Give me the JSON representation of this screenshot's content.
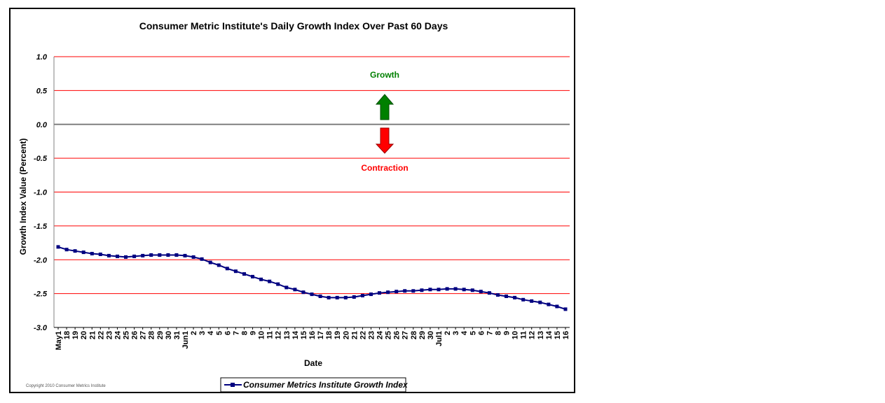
{
  "chart_data": {
    "type": "line",
    "title": "Consumer Metric Institute's Daily Growth Index Over Past 60 Days",
    "xlabel": "Date",
    "ylabel": "Growth Index Value (Percent)",
    "ylim": [
      -3.0,
      1.0
    ],
    "yticks": [
      "1.0",
      "0.5",
      "0.0",
      "-0.5",
      "-1.0",
      "-1.5",
      "-2.0",
      "-2.5",
      "-3.0"
    ],
    "grid": true,
    "legend_position": "bottom-center",
    "x": [
      "May1",
      "18",
      "19",
      "20",
      "21",
      "22",
      "23",
      "24",
      "25",
      "26",
      "27",
      "28",
      "29",
      "30",
      "31",
      "Jun1",
      "2",
      "3",
      "4",
      "5",
      "6",
      "7",
      "8",
      "9",
      "10",
      "11",
      "12",
      "13",
      "14",
      "15",
      "16",
      "17",
      "18",
      "19",
      "20",
      "21",
      "22",
      "23",
      "24",
      "25",
      "26",
      "27",
      "28",
      "29",
      "30",
      "Jul1",
      "2",
      "3",
      "4",
      "5",
      "6",
      "7",
      "8",
      "9",
      "10",
      "11",
      "12",
      "13",
      "14",
      "15",
      "16"
    ],
    "series": [
      {
        "name": "Consumer Metrics Institute Growth Index",
        "color": "#000080",
        "values": [
          -1.81,
          -1.85,
          -1.87,
          -1.89,
          -1.91,
          -1.92,
          -1.94,
          -1.95,
          -1.96,
          -1.95,
          -1.94,
          -1.93,
          -1.93,
          -1.93,
          -1.93,
          -1.94,
          -1.96,
          -1.99,
          -2.04,
          -2.08,
          -2.13,
          -2.17,
          -2.21,
          -2.25,
          -2.29,
          -2.32,
          -2.36,
          -2.41,
          -2.44,
          -2.48,
          -2.51,
          -2.54,
          -2.56,
          -2.56,
          -2.56,
          -2.55,
          -2.53,
          -2.51,
          -2.49,
          -2.48,
          -2.47,
          -2.46,
          -2.46,
          -2.45,
          -2.44,
          -2.44,
          -2.43,
          -2.43,
          -2.44,
          -2.45,
          -2.47,
          -2.49,
          -2.52,
          -2.54,
          -2.56,
          -2.59,
          -2.61,
          -2.63,
          -2.66,
          -2.69,
          -2.73
        ]
      }
    ],
    "annotations": [
      {
        "text": "Growth",
        "color": "#008000"
      },
      {
        "text": "Contraction",
        "color": "#ff0000"
      }
    ]
  },
  "copyright": "Copyright 2010 Consumer Metrics Institute"
}
